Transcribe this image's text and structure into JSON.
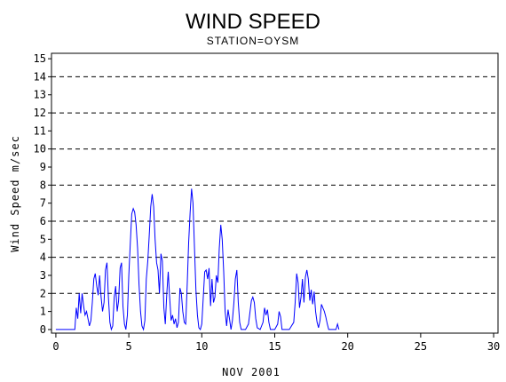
{
  "chart_data": {
    "type": "line",
    "title": "WIND SPEED",
    "subtitle": "STATION=OYSM",
    "xlabel": "NOV 2001",
    "ylabel": "Wind Speed m/sec",
    "xlim": [
      -0.3,
      30.3
    ],
    "ylim": [
      -0.2,
      15.3
    ],
    "xticks": [
      0,
      5,
      10,
      15,
      20,
      25,
      30
    ],
    "yticks": [
      0,
      1,
      2,
      3,
      4,
      5,
      6,
      7,
      8,
      9,
      10,
      11,
      12,
      13,
      14,
      15
    ],
    "grid_dashed_at": [
      2,
      4,
      6,
      8,
      10,
      12,
      14
    ],
    "legend": "none",
    "series": [
      {
        "color": "#0000ff",
        "points": [
          [
            0.0,
            0.0
          ],
          [
            1.3,
            0.0
          ],
          [
            1.4,
            1.2
          ],
          [
            1.5,
            0.6
          ],
          [
            1.6,
            2.0
          ],
          [
            1.7,
            0.9
          ],
          [
            1.8,
            2.0
          ],
          [
            1.9,
            1.3
          ],
          [
            2.0,
            0.8
          ],
          [
            2.1,
            1.0
          ],
          [
            2.2,
            0.6
          ],
          [
            2.3,
            0.2
          ],
          [
            2.4,
            0.5
          ],
          [
            2.5,
            1.5
          ],
          [
            2.6,
            2.8
          ],
          [
            2.7,
            3.1
          ],
          [
            2.8,
            2.4
          ],
          [
            2.9,
            1.9
          ],
          [
            3.0,
            3.0
          ],
          [
            3.1,
            1.8
          ],
          [
            3.2,
            1.0
          ],
          [
            3.3,
            1.5
          ],
          [
            3.4,
            3.3
          ],
          [
            3.5,
            3.7
          ],
          [
            3.6,
            1.8
          ],
          [
            3.7,
            0.4
          ],
          [
            3.8,
            0.0
          ],
          [
            3.9,
            0.2
          ],
          [
            4.0,
            1.8
          ],
          [
            4.1,
            2.4
          ],
          [
            4.2,
            1.0
          ],
          [
            4.3,
            1.6
          ],
          [
            4.4,
            3.4
          ],
          [
            4.5,
            3.7
          ],
          [
            4.6,
            1.3
          ],
          [
            4.7,
            0.3
          ],
          [
            4.8,
            0.0
          ],
          [
            4.9,
            0.8
          ],
          [
            5.0,
            3.0
          ],
          [
            5.1,
            4.8
          ],
          [
            5.2,
            6.4
          ],
          [
            5.3,
            6.7
          ],
          [
            5.4,
            6.5
          ],
          [
            5.5,
            5.8
          ],
          [
            5.6,
            4.5
          ],
          [
            5.7,
            2.5
          ],
          [
            5.8,
            1.0
          ],
          [
            5.9,
            0.2
          ],
          [
            6.0,
            0.0
          ],
          [
            6.1,
            0.5
          ],
          [
            6.2,
            2.8
          ],
          [
            6.3,
            3.8
          ],
          [
            6.4,
            5.2
          ],
          [
            6.5,
            6.8
          ],
          [
            6.6,
            7.5
          ],
          [
            6.7,
            6.8
          ],
          [
            6.8,
            5.0
          ],
          [
            6.9,
            3.7
          ],
          [
            7.0,
            3.3
          ],
          [
            7.1,
            2.0
          ],
          [
            7.2,
            4.2
          ],
          [
            7.3,
            3.8
          ],
          [
            7.4,
            1.2
          ],
          [
            7.5,
            0.3
          ],
          [
            7.6,
            2.0
          ],
          [
            7.7,
            3.2
          ],
          [
            7.8,
            1.8
          ],
          [
            7.9,
            0.5
          ],
          [
            8.0,
            0.8
          ],
          [
            8.1,
            0.3
          ],
          [
            8.2,
            0.6
          ],
          [
            8.3,
            0.1
          ],
          [
            8.4,
            0.4
          ],
          [
            8.5,
            2.3
          ],
          [
            8.6,
            2.0
          ],
          [
            8.7,
            1.0
          ],
          [
            8.8,
            0.4
          ],
          [
            8.9,
            0.3
          ],
          [
            9.0,
            2.5
          ],
          [
            9.1,
            4.8
          ],
          [
            9.2,
            6.5
          ],
          [
            9.3,
            7.8
          ],
          [
            9.4,
            7.0
          ],
          [
            9.5,
            4.5
          ],
          [
            9.6,
            2.2
          ],
          [
            9.7,
            0.8
          ],
          [
            9.8,
            0.1
          ],
          [
            9.9,
            0.0
          ],
          [
            10.0,
            0.3
          ],
          [
            10.1,
            1.8
          ],
          [
            10.2,
            3.2
          ],
          [
            10.3,
            3.3
          ],
          [
            10.4,
            2.8
          ],
          [
            10.5,
            3.4
          ],
          [
            10.6,
            1.3
          ],
          [
            10.7,
            2.8
          ],
          [
            10.8,
            1.5
          ],
          [
            10.9,
            1.8
          ],
          [
            11.0,
            3.0
          ],
          [
            11.1,
            2.6
          ],
          [
            11.2,
            4.5
          ],
          [
            11.3,
            5.8
          ],
          [
            11.4,
            5.0
          ],
          [
            11.5,
            3.2
          ],
          [
            11.6,
            1.0
          ],
          [
            11.7,
            0.2
          ],
          [
            11.8,
            1.1
          ],
          [
            11.9,
            0.6
          ],
          [
            12.0,
            0.0
          ],
          [
            12.1,
            0.5
          ],
          [
            12.2,
            1.5
          ],
          [
            12.3,
            2.8
          ],
          [
            12.4,
            3.3
          ],
          [
            12.5,
            1.5
          ],
          [
            12.6,
            0.4
          ],
          [
            12.7,
            0.0
          ],
          [
            13.0,
            0.0
          ],
          [
            13.2,
            0.3
          ],
          [
            13.4,
            1.6
          ],
          [
            13.5,
            1.8
          ],
          [
            13.6,
            1.5
          ],
          [
            13.7,
            0.6
          ],
          [
            13.8,
            0.1
          ],
          [
            14.0,
            0.0
          ],
          [
            14.2,
            0.4
          ],
          [
            14.3,
            1.2
          ],
          [
            14.4,
            0.8
          ],
          [
            14.5,
            1.1
          ],
          [
            14.6,
            0.4
          ],
          [
            14.7,
            0.0
          ],
          [
            15.0,
            0.0
          ],
          [
            15.2,
            0.3
          ],
          [
            15.3,
            1.0
          ],
          [
            15.4,
            0.7
          ],
          [
            15.5,
            0.0
          ],
          [
            16.0,
            0.0
          ],
          [
            16.3,
            0.4
          ],
          [
            16.4,
            1.5
          ],
          [
            16.5,
            3.1
          ],
          [
            16.6,
            2.6
          ],
          [
            16.7,
            1.2
          ],
          [
            16.8,
            1.8
          ],
          [
            16.9,
            2.8
          ],
          [
            17.0,
            1.5
          ],
          [
            17.1,
            2.9
          ],
          [
            17.2,
            3.3
          ],
          [
            17.3,
            2.8
          ],
          [
            17.4,
            1.6
          ],
          [
            17.5,
            2.2
          ],
          [
            17.6,
            1.4
          ],
          [
            17.7,
            2.1
          ],
          [
            17.8,
            1.0
          ],
          [
            17.9,
            0.4
          ],
          [
            18.0,
            0.1
          ],
          [
            18.1,
            0.5
          ],
          [
            18.2,
            1.4
          ],
          [
            18.3,
            1.2
          ],
          [
            18.4,
            1.0
          ],
          [
            18.5,
            0.7
          ],
          [
            18.6,
            0.3
          ],
          [
            18.7,
            0.0
          ],
          [
            18.8,
            0.0
          ],
          [
            19.0,
            0.0
          ],
          [
            19.2,
            0.0
          ],
          [
            19.3,
            0.3
          ],
          [
            19.4,
            0.0
          ]
        ]
      }
    ]
  }
}
